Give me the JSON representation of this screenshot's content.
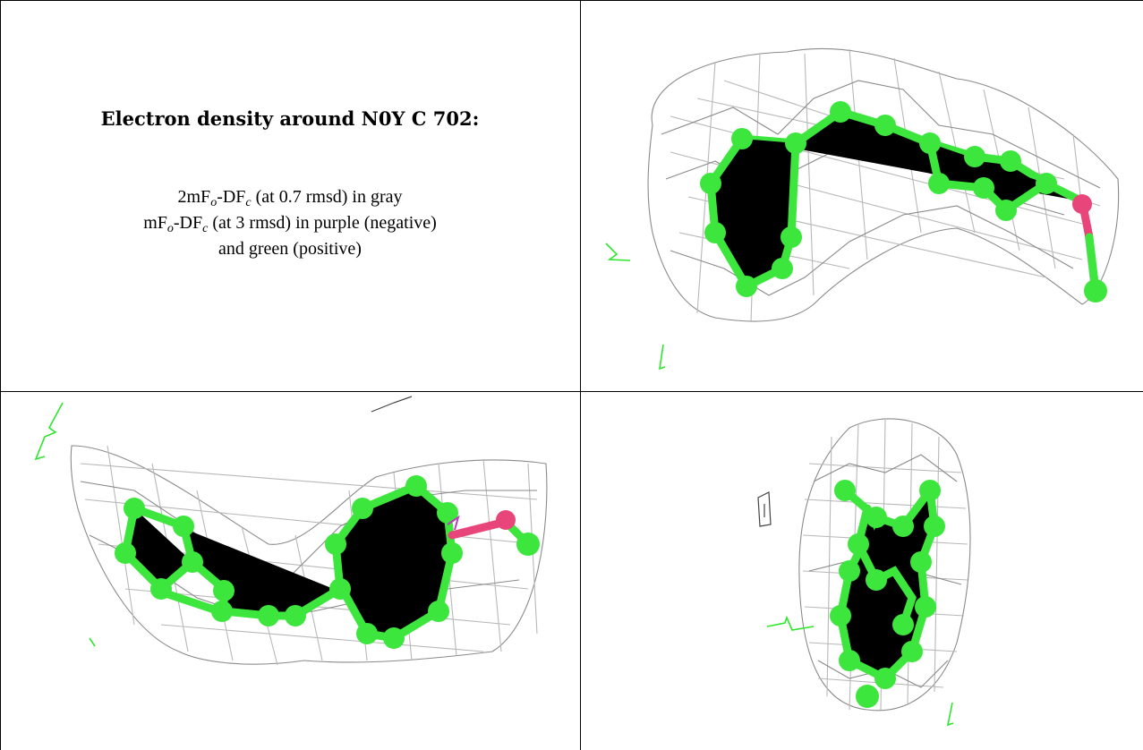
{
  "panel_caption": {
    "title": "Electron density around N0Y C 702:",
    "line1_prefix": "2mF",
    "line1_sub_o": "o",
    "line1_mid": "-DF",
    "line1_sub_c": "c",
    "line1_suffix": " (at 0.7 rmsd) in gray",
    "line2_prefix": "mF",
    "line2_sub_o": "o",
    "line2_mid": "-DF",
    "line2_sub_c": "c",
    "line2_suffix": " (at 3 rmsd) in purple (negative)",
    "line3": "and green (positive)"
  },
  "colors": {
    "mesh": "#8a8a8a",
    "carbon_atom": "#3de63d",
    "oxygen_atom": "#e8457a",
    "difference_positive": "#2ee62e",
    "difference_negative": "#c23ac2",
    "grid_line": "#000000"
  },
  "views": [
    "view-1",
    "view-2",
    "view-3"
  ]
}
